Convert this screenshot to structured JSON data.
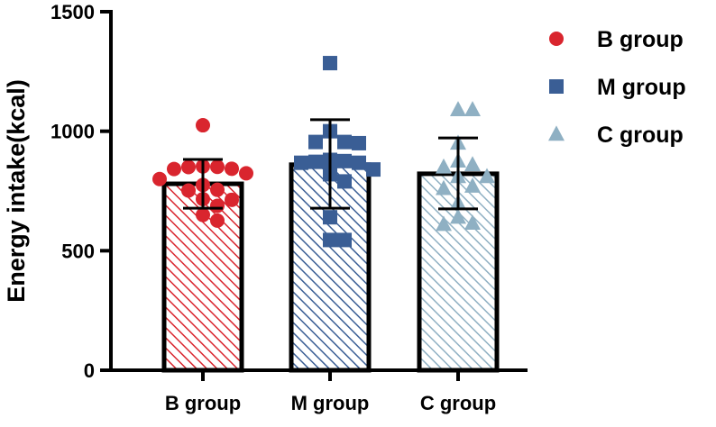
{
  "chart_data": {
    "type": "bar",
    "title": "",
    "xlabel": "",
    "ylabel": "Energy intake(kcal)",
    "ylim": [
      0,
      1500
    ],
    "yticks": [
      0,
      500,
      1000,
      1500
    ],
    "grid": false,
    "legend_position": "right",
    "categories": [
      "B group",
      "M group",
      "C group"
    ],
    "means": [
      780,
      860,
      822
    ],
    "error_upper": [
      882,
      1048,
      972
    ],
    "error_lower": [
      678,
      678,
      675
    ],
    "series": [
      {
        "name": "B group",
        "marker": "circle",
        "color": "#d9252e",
        "points": [
          1025,
          853,
          842,
          843,
          851,
          850,
          824,
          800,
          775,
          755,
          752,
          716,
          713,
          688,
          650,
          626
        ]
      },
      {
        "name": "M group",
        "marker": "square",
        "color": "#3a5e95",
        "points": [
          1285,
          1000,
          955,
          950,
          955,
          875,
          880,
          872,
          868,
          868,
          840,
          820,
          790,
          640,
          545,
          545
        ]
      },
      {
        "name": "C group",
        "marker": "triangle",
        "color": "#8fb0c3",
        "points": [
          1090,
          1090,
          950,
          875,
          860,
          850,
          810,
          810,
          770,
          760,
          700,
          615,
          610,
          640
        ]
      }
    ]
  }
}
